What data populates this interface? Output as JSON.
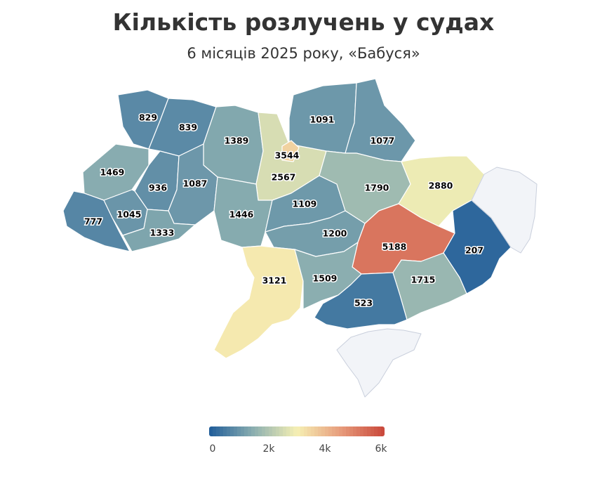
{
  "title": "Кількість розлучень у судах",
  "subtitle": "6 місяців 2025 року, «Бабуся»",
  "color_scale": {
    "min": 0,
    "max": 6000,
    "stops": [
      "#1f5c99",
      "#8aaeb0",
      "#f6f0b4",
      "#e79c7c",
      "#c9473a"
    ],
    "tick_labels": [
      "0",
      "2k",
      "4k",
      "6k"
    ]
  },
  "chart_data": {
    "type": "choropleth",
    "title": "Кількість розлучень у судах",
    "subtitle": "6 місяців 2025 року, «Бабуся»",
    "range": [
      0,
      6000
    ],
    "regions": [
      {
        "key": "volyn",
        "value": 829
      },
      {
        "key": "rivne",
        "value": 839
      },
      {
        "key": "zhytomyr",
        "value": 1389
      },
      {
        "key": "kyiv-oblast",
        "value": 2567
      },
      {
        "key": "kyiv-city",
        "value": 3544
      },
      {
        "key": "chernihiv",
        "value": 1091
      },
      {
        "key": "sumy",
        "value": 1077
      },
      {
        "key": "lviv",
        "value": 1469
      },
      {
        "key": "ternopil",
        "value": 936
      },
      {
        "key": "khmelnytskyi",
        "value": 1087
      },
      {
        "key": "vinnytsia",
        "value": 1446
      },
      {
        "key": "zakarpattia",
        "value": 777
      },
      {
        "key": "ivano-frankivsk",
        "value": 1045
      },
      {
        "key": "chernivtsi",
        "value": 1333
      },
      {
        "key": "cherkasy",
        "value": 1109
      },
      {
        "key": "poltava",
        "value": 1790
      },
      {
        "key": "kharkiv",
        "value": 2880
      },
      {
        "key": "kirovohrad",
        "value": 1200
      },
      {
        "key": "dnipropetrovsk",
        "value": 5188
      },
      {
        "key": "donetsk",
        "value": 207
      },
      {
        "key": "odesa",
        "value": 3121
      },
      {
        "key": "mykolaiv",
        "value": 1509
      },
      {
        "key": "kherson",
        "value": 523
      },
      {
        "key": "zaporizhzhia",
        "value": 1715
      },
      {
        "key": "luhansk",
        "value": null
      },
      {
        "key": "crimea",
        "value": null
      }
    ]
  }
}
